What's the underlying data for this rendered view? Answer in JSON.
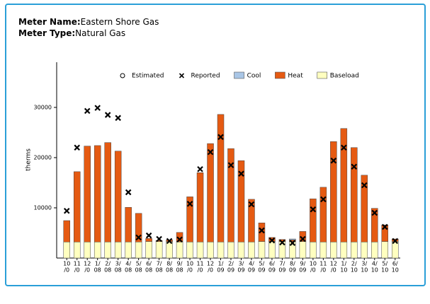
{
  "header": {
    "name_label": "Meter Name:",
    "name": "Eastern Shore Gas",
    "type_label": "Meter Type:",
    "type": "Natural Gas"
  },
  "chart_data": {
    "type": "stacked_bar_scatter",
    "y_label": "therms",
    "categories": [
      [
        "10",
        "/0"
      ],
      [
        "11",
        "/0"
      ],
      [
        "12",
        "/0"
      ],
      [
        "1/",
        "08"
      ],
      [
        "2/",
        "08"
      ],
      [
        "3/",
        "08"
      ],
      [
        "4/",
        "08"
      ],
      [
        "5/",
        "08"
      ],
      [
        "6/",
        "08"
      ],
      [
        "7/",
        "08"
      ],
      [
        "8/",
        "08"
      ],
      [
        "9/",
        "08"
      ],
      [
        "10",
        "/0"
      ],
      [
        "11",
        "/0"
      ],
      [
        "12",
        "/0"
      ],
      [
        "1/",
        "09"
      ],
      [
        "2/",
        "09"
      ],
      [
        "3/",
        "09"
      ],
      [
        "4/",
        "09"
      ],
      [
        "5/",
        "09"
      ],
      [
        "6/",
        "09"
      ],
      [
        "7/",
        "09"
      ],
      [
        "8/",
        "09"
      ],
      [
        "9/",
        "09"
      ],
      [
        "10",
        "/0"
      ],
      [
        "11",
        "/0"
      ],
      [
        "12",
        "/0"
      ],
      [
        "1/",
        "10"
      ],
      [
        "2/",
        "10"
      ],
      [
        "3/",
        "10"
      ],
      [
        "4/",
        "10"
      ],
      [
        "5/",
        "10"
      ],
      [
        "6/",
        "10"
      ]
    ],
    "series": [
      {
        "name": "Estimated",
        "kind": "point",
        "marker": "circle",
        "color": "#000000",
        "values": [
          null,
          null,
          null,
          null,
          null,
          null,
          null,
          null,
          null,
          null,
          null,
          null,
          null,
          null,
          null,
          null,
          null,
          null,
          null,
          null,
          null,
          null,
          null,
          null,
          null,
          null,
          null,
          null,
          null,
          null,
          null,
          null,
          null
        ]
      },
      {
        "name": "Reported",
        "kind": "point",
        "marker": "cross",
        "color": "#000000",
        "values": [
          9400,
          22000,
          29300,
          29900,
          28500,
          27900,
          13100,
          4100,
          4500,
          3800,
          3400,
          3700,
          10800,
          17700,
          21100,
          24100,
          18500,
          16800,
          10700,
          5500,
          3500,
          3100,
          3000,
          3800,
          9700,
          11700,
          19400,
          22000,
          18200,
          14500,
          9000,
          6200,
          3400
        ]
      },
      {
        "name": "Cool",
        "kind": "bar",
        "color": "#a9c6e6",
        "values": [
          0,
          0,
          0,
          0,
          0,
          0,
          0,
          0,
          0,
          0,
          0,
          0,
          0,
          0,
          0,
          0,
          0,
          0,
          0,
          0,
          0,
          0,
          200,
          0,
          0,
          0,
          0,
          0,
          0,
          0,
          0,
          0,
          0
        ]
      },
      {
        "name": "Heat",
        "kind": "bar",
        "color": "#e55a12",
        "values": [
          4260,
          14000,
          19100,
          19200,
          19800,
          18100,
          6900,
          5700,
          600,
          200,
          300,
          1900,
          9000,
          13800,
          19600,
          25400,
          18600,
          16200,
          8500,
          3700,
          800,
          400,
          300,
          2000,
          8600,
          10900,
          20000,
          22600,
          18800,
          13300,
          6700,
          3300,
          500
        ]
      },
      {
        "name": "Baseload",
        "kind": "bar",
        "color": "#ffffc0",
        "values": [
          3200,
          3200,
          3200,
          3200,
          3200,
          3200,
          3200,
          3200,
          3300,
          3300,
          3300,
          3200,
          3200,
          3200,
          3200,
          3200,
          3200,
          3200,
          3200,
          3300,
          3300,
          3300,
          3300,
          3300,
          3200,
          3200,
          3200,
          3200,
          3200,
          3200,
          3200,
          3300,
          3300
        ]
      }
    ],
    "ylim": [
      0,
      39000
    ],
    "yticks": [
      10000,
      20000,
      30000
    ]
  }
}
